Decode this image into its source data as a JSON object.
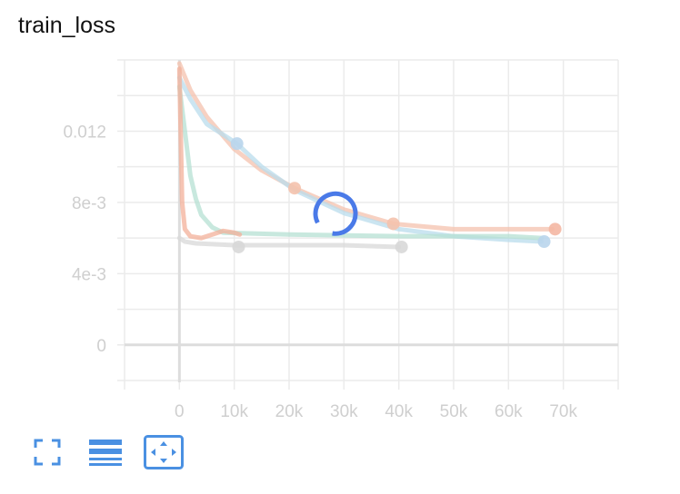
{
  "card": {
    "title": "train_loss"
  },
  "toolbar": {
    "buttons": [
      {
        "name": "fullscreen",
        "icon": "fullscreen-icon"
      },
      {
        "name": "toggle-log-y",
        "icon": "list-icon"
      },
      {
        "name": "fit-domain",
        "icon": "fit-domain-icon",
        "active": true
      }
    ]
  },
  "loading": true,
  "colors": {
    "grid": "#ebebeb",
    "axis": "#dddddd",
    "tick_text": "#cfcfcf",
    "spinner": "#4a7ae8",
    "icon": "#4a90e2"
  },
  "chart_data": {
    "type": "line",
    "title": "train_loss",
    "xlabel": "",
    "ylabel": "",
    "xlim": [
      -10000,
      80000
    ],
    "ylim": [
      -0.0021,
      0.016
    ],
    "xticks": [
      0,
      10000,
      20000,
      30000,
      40000,
      50000,
      60000,
      70000
    ],
    "xtick_labels": [
      "0",
      "10k",
      "20k",
      "30k",
      "40k",
      "50k",
      "60k",
      "70k"
    ],
    "yticks": [
      0,
      0.004,
      0.008,
      0.012
    ],
    "ytick_labels": [
      "0",
      "4e-3",
      "8e-3",
      "0.012"
    ],
    "grid": true,
    "series": [
      {
        "color": "#f4c2ad",
        "x": [
          0,
          2000,
          5000,
          10000,
          15000,
          21000,
          30000,
          39000,
          50000,
          60000,
          68000
        ],
        "y": [
          0.0158,
          0.0143,
          0.0128,
          0.011,
          0.0098,
          0.0088,
          0.0076,
          0.0068,
          0.0065,
          0.0065,
          0.0065
        ]
      },
      {
        "color": "#b9dcec",
        "x": [
          0,
          2000,
          5000,
          10500,
          15000,
          21000,
          30000,
          40000,
          50000,
          60000,
          66000
        ],
        "y": [
          0.015,
          0.0138,
          0.0124,
          0.0113,
          0.01,
          0.0087,
          0.0074,
          0.0065,
          0.0061,
          0.0059,
          0.0058
        ]
      },
      {
        "color": "#b5e0d3",
        "x": [
          0,
          1000,
          2000,
          3000,
          4000,
          6000,
          8000,
          20000,
          40000,
          60000,
          66000
        ],
        "y": [
          0.0145,
          0.012,
          0.0095,
          0.0082,
          0.0073,
          0.0066,
          0.0063,
          0.0062,
          0.0061,
          0.0061,
          0.006
        ]
      },
      {
        "color": "#f3b09a",
        "x": [
          0,
          500,
          1000,
          2000,
          4000,
          6000,
          8000,
          10000,
          11000
        ],
        "y": [
          0.0155,
          0.008,
          0.0065,
          0.0061,
          0.006,
          0.0062,
          0.0064,
          0.0063,
          0.0062
        ]
      },
      {
        "color": "#d8d8d8",
        "x": [
          0,
          1000,
          3000,
          10000,
          20000,
          30000,
          40000
        ],
        "y": [
          0.006,
          0.0058,
          0.0057,
          0.0056,
          0.0056,
          0.0056,
          0.0055
        ]
      }
    ],
    "markers": [
      {
        "color": "#f4c2ad",
        "x": 21000,
        "y": 0.0088
      },
      {
        "color": "#f4c2ad",
        "x": 39000,
        "y": 0.0068
      },
      {
        "color": "#f4b7a3",
        "x": 68500,
        "y": 0.0065
      },
      {
        "color": "#b9d5ec",
        "x": 10500,
        "y": 0.0113
      },
      {
        "color": "#b9d5ec",
        "x": 66500,
        "y": 0.0058
      },
      {
        "color": "#d8d8d8",
        "x": 10800,
        "y": 0.0055
      },
      {
        "color": "#d8d8d8",
        "x": 40500,
        "y": 0.0055
      }
    ]
  }
}
